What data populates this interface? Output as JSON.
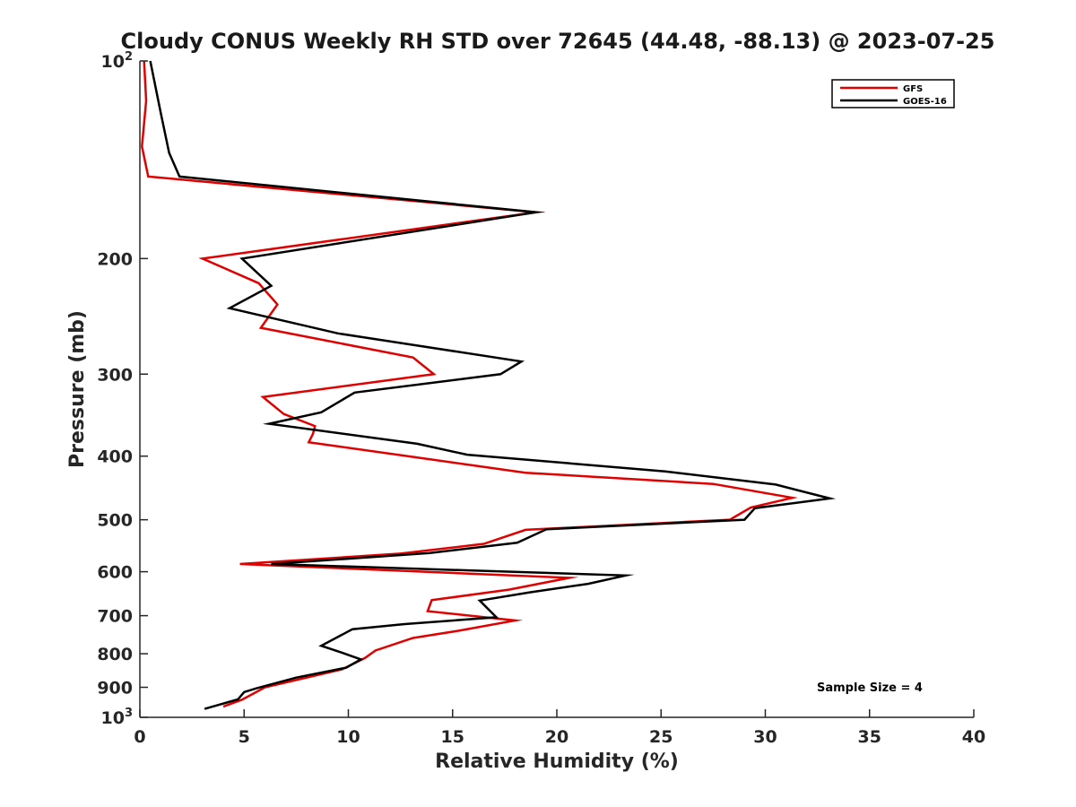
{
  "chart_data": {
    "type": "line",
    "title": "Cloudy CONUS Weekly RH STD over 72645 (44.48, -88.13) @ 2023-07-25",
    "xlabel": "Relative Humidity (%)",
    "ylabel": "Pressure (mb)",
    "xlim": [
      0,
      40
    ],
    "ylim": [
      100,
      1000
    ],
    "y_scale": "log",
    "y_reversed": true,
    "grid": false,
    "legend_position": "top-right",
    "x_ticks": [
      {
        "value": 0,
        "label": "0"
      },
      {
        "value": 5,
        "label": "5"
      },
      {
        "value": 10,
        "label": "10"
      },
      {
        "value": 15,
        "label": "15"
      },
      {
        "value": 20,
        "label": "20"
      },
      {
        "value": 25,
        "label": "25"
      },
      {
        "value": 30,
        "label": "30"
      },
      {
        "value": 35,
        "label": "35"
      },
      {
        "value": 40,
        "label": "40"
      }
    ],
    "y_ticks": [
      {
        "value": 100,
        "base": "10",
        "sup": "2"
      },
      {
        "value": 200,
        "base": "200",
        "sup": ""
      },
      {
        "value": 300,
        "base": "300",
        "sup": ""
      },
      {
        "value": 400,
        "base": "400",
        "sup": ""
      },
      {
        "value": 500,
        "base": "500",
        "sup": ""
      },
      {
        "value": 600,
        "base": "600",
        "sup": ""
      },
      {
        "value": 700,
        "base": "700",
        "sup": ""
      },
      {
        "value": 800,
        "base": "800",
        "sup": ""
      },
      {
        "value": 900,
        "base": "900",
        "sup": ""
      },
      {
        "value": 1000,
        "base": "10",
        "sup": "3"
      }
    ],
    "annotation": "Sample Size = 4",
    "series": [
      {
        "name": "GFS",
        "color": "#e00000",
        "points": [
          [
            0.2,
            100
          ],
          [
            0.3,
            115
          ],
          [
            0.1,
            135
          ],
          [
            0.4,
            150
          ],
          [
            19,
            170
          ],
          [
            3.0,
            200
          ],
          [
            5.7,
            218
          ],
          [
            6.6,
            235
          ],
          [
            5.8,
            255
          ],
          [
            13.1,
            283
          ],
          [
            14.1,
            300
          ],
          [
            5.9,
            325
          ],
          [
            6.9,
            345
          ],
          [
            8.4,
            360
          ],
          [
            8.3,
            370
          ],
          [
            8.1,
            381
          ],
          [
            18.5,
            424
          ],
          [
            27.5,
            441
          ],
          [
            31.3,
            463
          ],
          [
            29.3,
            479
          ],
          [
            28.3,
            500
          ],
          [
            18.5,
            518
          ],
          [
            16.5,
            544
          ],
          [
            12.5,
            563
          ],
          [
            4.8,
            584
          ],
          [
            20.6,
            613
          ],
          [
            17.7,
            639
          ],
          [
            14.0,
            663
          ],
          [
            13.8,
            689
          ],
          [
            18.0,
            712
          ],
          [
            15.3,
            738
          ],
          [
            13.1,
            757
          ],
          [
            11.3,
            791
          ],
          [
            10.8,
            812
          ],
          [
            9.7,
            845
          ],
          [
            6.0,
            900
          ],
          [
            4.9,
            940
          ],
          [
            4.0,
            963
          ]
        ]
      },
      {
        "name": "GOES-16",
        "color": "#000000",
        "points": [
          [
            0.5,
            100
          ],
          [
            1.0,
            120
          ],
          [
            1.4,
            138
          ],
          [
            1.9,
            150
          ],
          [
            19.0,
            170
          ],
          [
            4.9,
            200
          ],
          [
            6.3,
            220
          ],
          [
            4.3,
            238
          ],
          [
            9.5,
            260
          ],
          [
            18.3,
            287
          ],
          [
            17.3,
            300
          ],
          [
            10.3,
            320
          ],
          [
            8.7,
            343
          ],
          [
            6.2,
            357
          ],
          [
            13.3,
            383
          ],
          [
            15.7,
            398
          ],
          [
            25.2,
            422
          ],
          [
            30.5,
            442
          ],
          [
            33.1,
            464
          ],
          [
            29.5,
            480
          ],
          [
            29.0,
            500
          ],
          [
            19.5,
            517
          ],
          [
            18.1,
            542
          ],
          [
            13.9,
            562
          ],
          [
            6.3,
            584
          ],
          [
            23.3,
            608
          ],
          [
            21.5,
            626
          ],
          [
            18.7,
            645
          ],
          [
            16.3,
            664
          ],
          [
            17.1,
            704
          ],
          [
            12.7,
            721
          ],
          [
            10.2,
            734
          ],
          [
            8.7,
            778
          ],
          [
            9.7,
            797
          ],
          [
            10.6,
            816
          ],
          [
            9.9,
            840
          ],
          [
            7.5,
            870
          ],
          [
            5.6,
            903
          ],
          [
            5.0,
            915
          ],
          [
            4.7,
            939
          ],
          [
            3.1,
            971
          ]
        ]
      }
    ]
  }
}
